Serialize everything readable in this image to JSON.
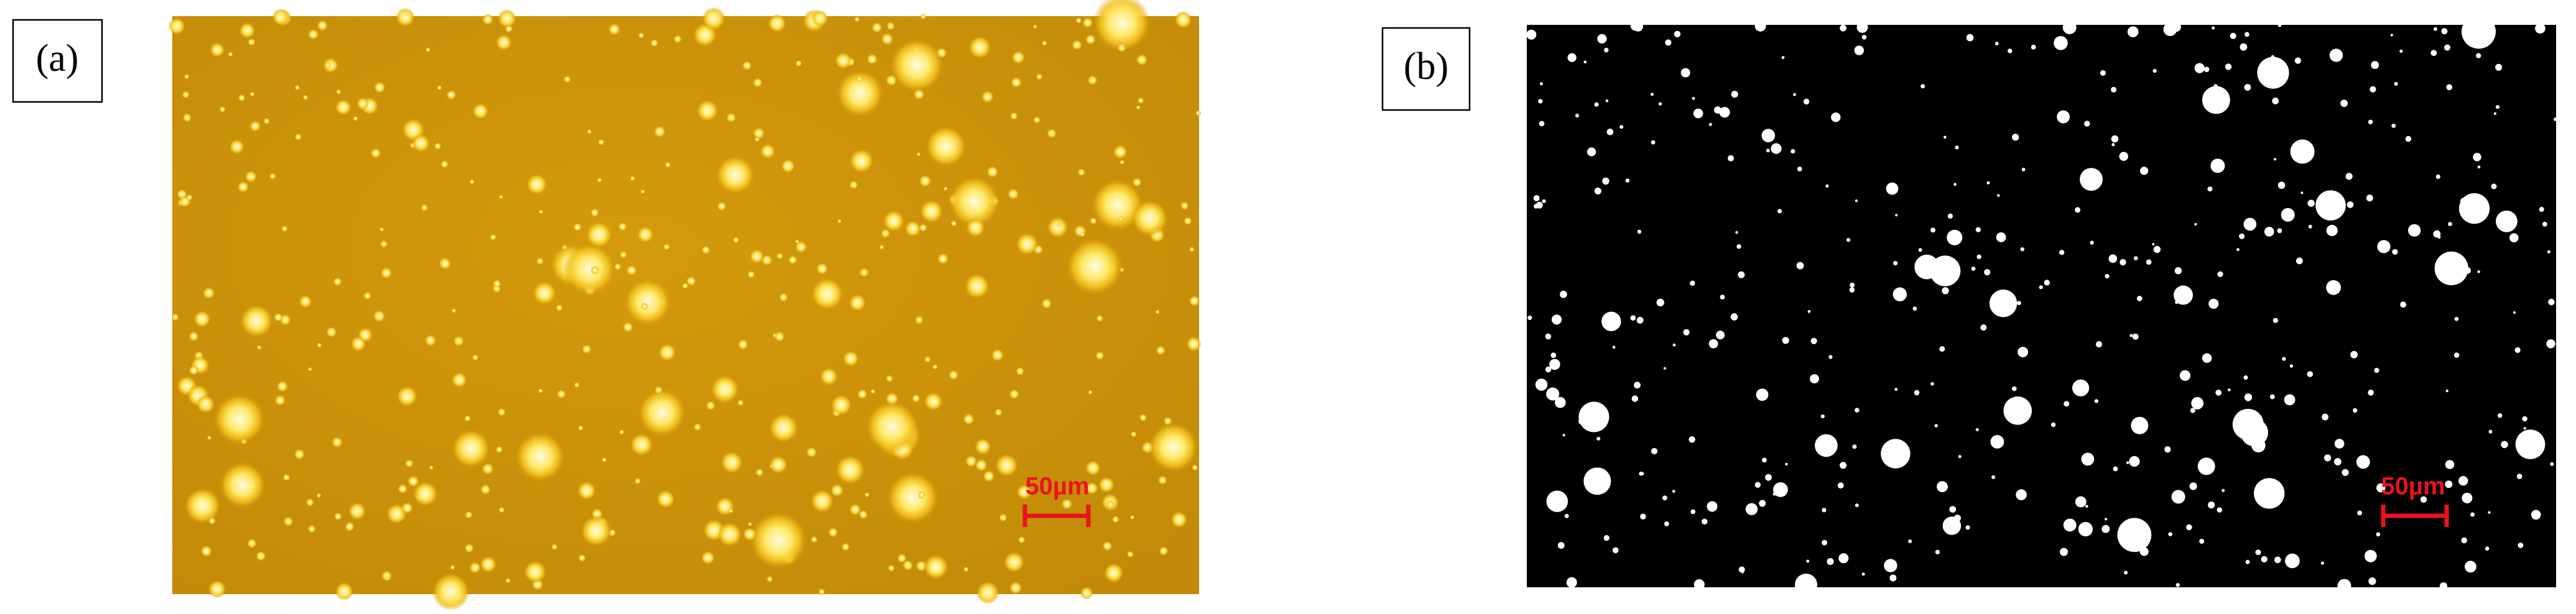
{
  "panels": [
    {
      "label": "(a)",
      "scale_bar": "50µm"
    },
    {
      "label": "(b)",
      "scale_bar": "50µm"
    }
  ]
}
